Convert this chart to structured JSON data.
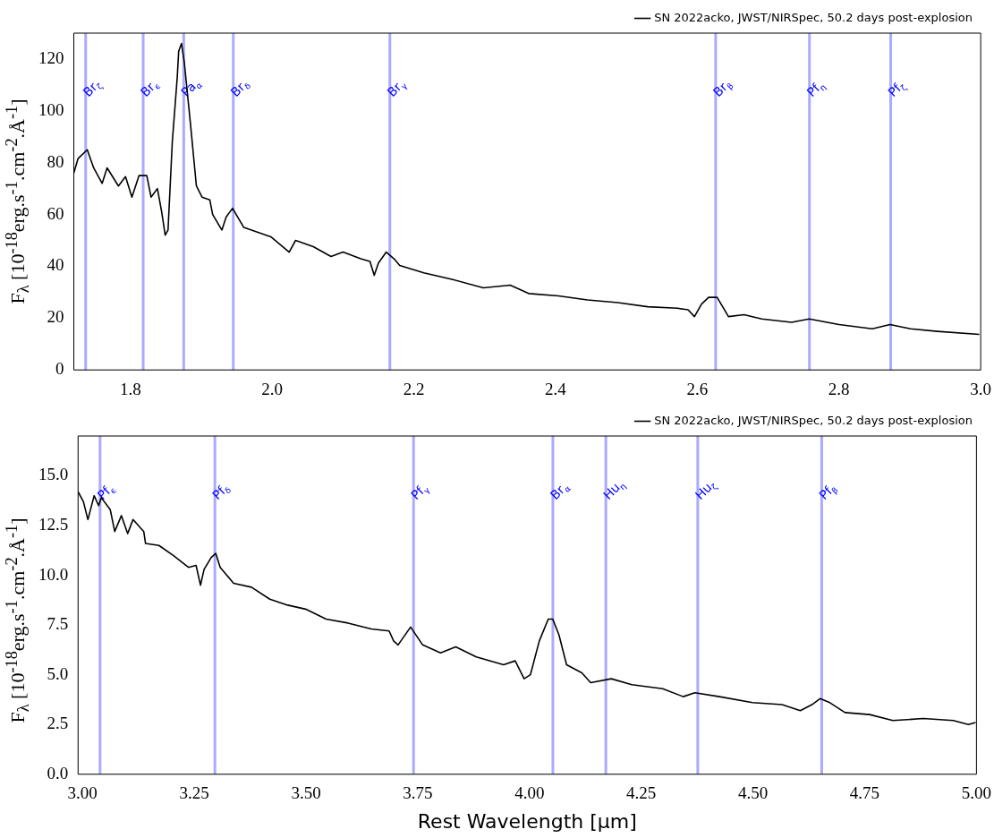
{
  "chart_data": [
    {
      "type": "line",
      "ylabel": "F$_{λ}$ [10$^{-18}$erg.s$^{-1}$.cm$^{-2}$.Å$^{-1}$]",
      "legend": "top right",
      "grid": false,
      "marker": "none",
      "line_style": "solid",
      "xlim": [
        1.72,
        3.0
      ],
      "ylim": [
        0,
        130
      ],
      "xticks": [
        1.8,
        {
          "value": 2.0,
          "label": "2.0"
        },
        2.2,
        2.4,
        2.6,
        2.8,
        {
          "value": 3.0,
          "label": "3.0"
        }
      ],
      "yticks": [
        0,
        20,
        40,
        60,
        80,
        100,
        120
      ],
      "series": [
        {
          "name": "SN 2022acko, JWST/NIRSpec, 50.2 days post-explosion",
          "color": "#000000",
          "x": [
            1.72,
            1.726,
            1.739,
            1.748,
            1.76,
            1.767,
            1.783,
            1.793,
            1.802,
            1.812,
            1.823,
            1.829,
            1.838,
            1.844,
            1.849,
            1.853,
            1.859,
            1.866,
            1.868,
            1.872,
            1.876,
            1.885,
            1.893,
            1.901,
            1.912,
            1.916,
            1.929,
            1.935,
            1.944,
            1.96,
            1.998,
            2.024,
            2.033,
            2.058,
            2.083,
            2.1,
            2.125,
            2.138,
            2.144,
            2.15,
            2.161,
            2.172,
            2.18,
            2.214,
            2.255,
            2.298,
            2.336,
            2.362,
            2.404,
            2.445,
            2.488,
            2.53,
            2.572,
            2.587,
            2.596,
            2.606,
            2.616,
            2.628,
            2.644,
            2.666,
            2.691,
            2.733,
            2.758,
            2.8,
            2.847,
            2.872,
            2.901,
            2.939,
            2.998
          ],
          "values": [
            76,
            81.6,
            85,
            78,
            72,
            78,
            71,
            74.6,
            66.7,
            75,
            75,
            66.7,
            70,
            61,
            52,
            54,
            88,
            113,
            123,
            126,
            118.6,
            94,
            71,
            66.7,
            65.6,
            60,
            54,
            59,
            62.4,
            55,
            51.4,
            45.5,
            50,
            47.6,
            43.8,
            45.5,
            42.9,
            41.9,
            36.5,
            41.3,
            45.5,
            42.9,
            40.3,
            37.5,
            34.9,
            31.7,
            32.7,
            29.5,
            28.6,
            27,
            26,
            24.4,
            23.8,
            23.2,
            20.6,
            25.4,
            28,
            28,
            20.6,
            21.3,
            19.7,
            18.4,
            19.7,
            17.5,
            15.9,
            17.5,
            15.9,
            14.9,
            13.7
          ]
        }
      ],
      "ref_lines": [
        {
          "axis": "x",
          "value": 1.7367,
          "label": "Br$_{ζ}$",
          "color": "#aaaaff"
        },
        {
          "axis": "x",
          "value": 1.8179,
          "label": "Br$_{ϵ}$",
          "color": "#aaaaff"
        },
        {
          "axis": "x",
          "value": 1.8751,
          "label": "Pa$_{α}$",
          "color": "#aaaaff"
        },
        {
          "axis": "x",
          "value": 1.9451,
          "label": "Br$_{δ}$",
          "color": "#aaaaff"
        },
        {
          "axis": "x",
          "value": 2.1661,
          "label": "Br$_{γ}$",
          "color": "#aaaaff"
        },
        {
          "axis": "x",
          "value": 2.6259,
          "label": "Br$_{β}$",
          "color": "#aaaaff"
        },
        {
          "axis": "x",
          "value": 2.7583,
          "label": "Pf$_{η}$",
          "color": "#aaaaff"
        },
        {
          "axis": "x",
          "value": 2.873,
          "label": "Pf$_{ζ}$",
          "color": "#aaaaff"
        }
      ]
    },
    {
      "type": "line",
      "xlabel": "Rest Wavelength [μm]",
      "ylabel": "F$_{λ}$ [10$^{-18}$erg.s$^{-1}$.cm$^{-2}$.Å$^{-1}$]",
      "legend": "top right",
      "grid": false,
      "marker": "none",
      "line_style": "solid",
      "xlim": [
        2.99,
        5.0
      ],
      "ylim": [
        0,
        17
      ],
      "xticks": [
        {
          "value": 3.0,
          "label": "3.00"
        },
        3.25,
        {
          "value": 3.5,
          "label": "3.50"
        },
        3.75,
        {
          "value": 4.0,
          "label": "4.00"
        },
        4.25,
        {
          "value": 4.5,
          "label": "4.50"
        },
        4.75,
        {
          "value": 5.0,
          "label": "5.00"
        }
      ],
      "yticks": [
        {
          "value": 0,
          "label": "0.0"
        },
        2.5,
        {
          "value": 5,
          "label": "5.0"
        },
        7.5,
        {
          "value": 10,
          "label": "10.0"
        },
        12.5,
        {
          "value": 15,
          "label": "15.0"
        }
      ],
      "series": [
        {
          "name": "SN 2022acko, JWST/NIRSpec, 50.2 days post-explosion",
          "color": "#000000",
          "x": [
            2.99,
            3.002,
            3.012,
            3.026,
            3.036,
            3.042,
            3.062,
            3.072,
            3.087,
            3.101,
            3.113,
            3.137,
            3.141,
            3.171,
            3.203,
            3.237,
            3.254,
            3.264,
            3.272,
            3.288,
            3.298,
            3.308,
            3.338,
            3.378,
            3.419,
            3.459,
            3.499,
            3.545,
            3.594,
            3.646,
            3.686,
            3.696,
            3.706,
            3.734,
            3.761,
            3.801,
            3.835,
            3.881,
            3.942,
            3.968,
            3.988,
            4.002,
            4.022,
            4.042,
            4.052,
            4.066,
            4.083,
            4.117,
            4.137,
            4.183,
            4.229,
            4.298,
            4.344,
            4.37,
            4.425,
            4.499,
            4.565,
            4.606,
            4.632,
            4.65,
            4.672,
            4.706,
            4.761,
            4.813,
            4.881,
            4.948,
            4.982,
            4.998
          ],
          "values": [
            14.2,
            13.7,
            12.8,
            14,
            13.5,
            13.9,
            13.3,
            12.2,
            13,
            12.1,
            12.8,
            12.2,
            11.6,
            11.5,
            11,
            10.4,
            10.5,
            9.5,
            10.3,
            10.9,
            11.1,
            10.4,
            9.6,
            9.4,
            8.8,
            8.5,
            8.3,
            7.8,
            7.6,
            7.3,
            7.2,
            6.7,
            6.5,
            7.4,
            6.5,
            6.1,
            6.4,
            5.9,
            5.5,
            5.7,
            4.8,
            5,
            6.7,
            7.8,
            7.8,
            7,
            5.5,
            5.1,
            4.6,
            4.8,
            4.5,
            4.3,
            3.9,
            4.1,
            3.9,
            3.6,
            3.5,
            3.2,
            3.5,
            3.8,
            3.6,
            3.1,
            3,
            2.7,
            2.8,
            2.7,
            2.5,
            2.6
          ]
        }
      ],
      "ref_lines": [
        {
          "axis": "x",
          "value": 3.0392,
          "label": "Pf$_{ϵ}$",
          "color": "#aaaaff"
        },
        {
          "axis": "x",
          "value": 3.2961,
          "label": "Pf$_{δ}$",
          "color": "#aaaaff"
        },
        {
          "axis": "x",
          "value": 3.7406,
          "label": "Pf$_{γ}$",
          "color": "#aaaaff"
        },
        {
          "axis": "x",
          "value": 4.0523,
          "label": "Br$_{α}$",
          "color": "#aaaaff"
        },
        {
          "axis": "x",
          "value": 4.1708,
          "label": "Hu$_{η}$",
          "color": "#aaaaff"
        },
        {
          "axis": "x",
          "value": 4.3765,
          "label": "Hu$_{ζ}$",
          "color": "#aaaaff"
        },
        {
          "axis": "x",
          "value": 4.6538,
          "label": "Pf$_{β}$",
          "color": "#aaaaff"
        }
      ]
    }
  ]
}
